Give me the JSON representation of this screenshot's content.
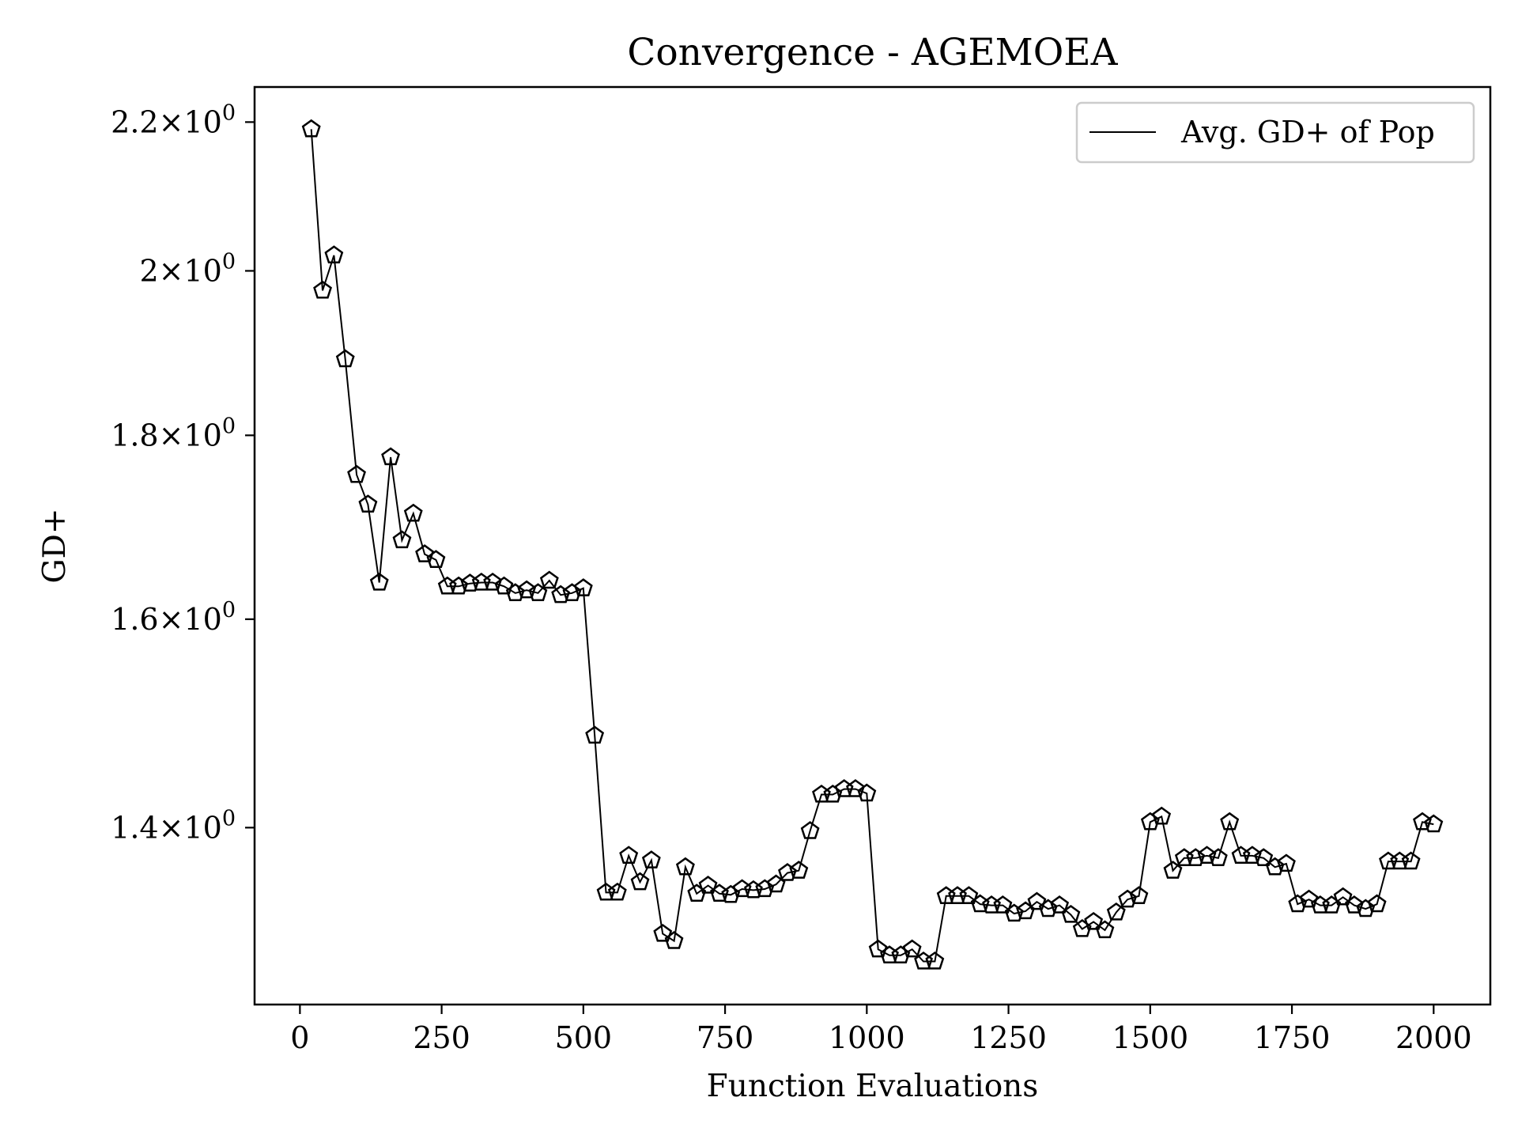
{
  "chart_data": {
    "type": "line",
    "title": "Convergence - AGEMOEA",
    "xlabel": "Function Evaluations",
    "ylabel": "GD+",
    "yscale": "log",
    "xlim": [
      -80,
      2100
    ],
    "ylim": [
      1.25,
      2.25
    ],
    "grid": false,
    "legend_position": "top-right",
    "line_color": "#000000",
    "marker": "pentagon",
    "x_ticks": [
      {
        "value": 0,
        "label": "0"
      },
      {
        "value": 250,
        "label": "250"
      },
      {
        "value": 500,
        "label": "500"
      },
      {
        "value": 750,
        "label": "750"
      },
      {
        "value": 1000,
        "label": "1000"
      },
      {
        "value": 1250,
        "label": "1250"
      },
      {
        "value": 1500,
        "label": "1500"
      },
      {
        "value": 1750,
        "label": "1750"
      },
      {
        "value": 2000,
        "label": "2000"
      }
    ],
    "y_ticks": [
      {
        "value": 1.4,
        "mantissa": "1.4",
        "exp": "0"
      },
      {
        "value": 1.6,
        "mantissa": "1.6",
        "exp": "0"
      },
      {
        "value": 1.8,
        "mantissa": "1.8",
        "exp": "0"
      },
      {
        "value": 2.0,
        "mantissa": "2",
        "exp": "0"
      },
      {
        "value": 2.2,
        "mantissa": "2.2",
        "exp": "0"
      }
    ],
    "series": [
      {
        "name": "Avg. GD+ of Pop",
        "x": [
          20,
          40,
          60,
          80,
          100,
          120,
          140,
          160,
          180,
          200,
          220,
          240,
          260,
          280,
          300,
          320,
          340,
          360,
          380,
          400,
          420,
          440,
          460,
          480,
          500,
          520,
          540,
          560,
          580,
          600,
          620,
          640,
          660,
          680,
          700,
          720,
          740,
          760,
          780,
          800,
          820,
          840,
          860,
          880,
          900,
          920,
          940,
          960,
          980,
          1000,
          1020,
          1040,
          1060,
          1080,
          1100,
          1120,
          1140,
          1160,
          1180,
          1200,
          1220,
          1240,
          1260,
          1280,
          1300,
          1320,
          1340,
          1360,
          1380,
          1400,
          1420,
          1440,
          1460,
          1480,
          1500,
          1520,
          1540,
          1560,
          1580,
          1600,
          1620,
          1640,
          1660,
          1680,
          1700,
          1720,
          1740,
          1760,
          1780,
          1800,
          1820,
          1840,
          1860,
          1880,
          1900,
          1920,
          1940,
          1960,
          1980,
          2000
        ],
        "y": [
          2.19,
          1.975,
          2.02,
          1.89,
          1.755,
          1.722,
          1.638,
          1.775,
          1.683,
          1.712,
          1.668,
          1.662,
          1.634,
          1.634,
          1.637,
          1.638,
          1.638,
          1.634,
          1.627,
          1.63,
          1.627,
          1.64,
          1.625,
          1.627,
          1.632,
          1.485,
          1.343,
          1.343,
          1.375,
          1.352,
          1.371,
          1.308,
          1.302,
          1.365,
          1.342,
          1.349,
          1.342,
          1.341,
          1.346,
          1.345,
          1.346,
          1.35,
          1.36,
          1.362,
          1.397,
          1.43,
          1.43,
          1.435,
          1.435,
          1.431,
          1.295,
          1.29,
          1.29,
          1.295,
          1.285,
          1.285,
          1.34,
          1.34,
          1.34,
          1.333,
          1.332,
          1.332,
          1.325,
          1.327,
          1.335,
          1.329,
          1.332,
          1.324,
          1.312,
          1.318,
          1.311,
          1.326,
          1.337,
          1.34,
          1.405,
          1.41,
          1.362,
          1.373,
          1.373,
          1.375,
          1.373,
          1.405,
          1.375,
          1.375,
          1.373,
          1.365,
          1.368,
          1.333,
          1.337,
          1.332,
          1.332,
          1.339,
          1.332,
          1.329,
          1.333,
          1.37,
          1.37,
          1.37,
          1.405,
          1.403
        ]
      }
    ]
  }
}
